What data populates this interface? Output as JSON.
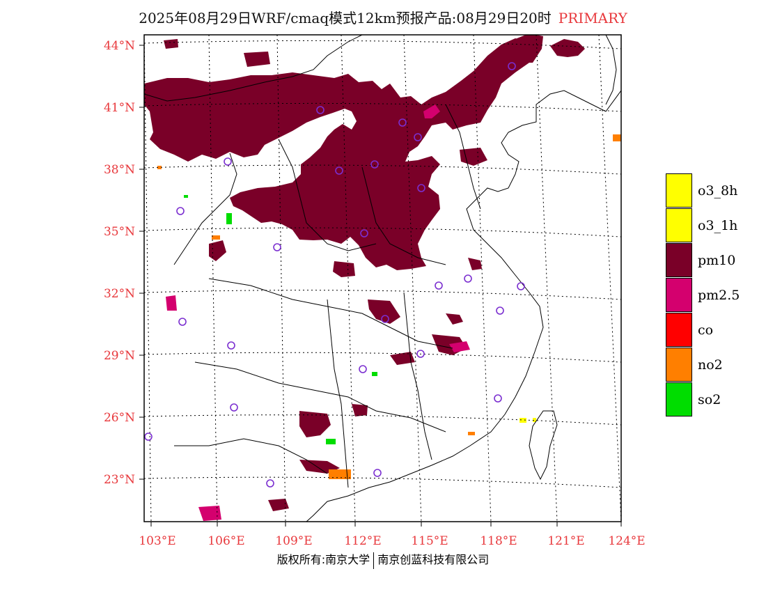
{
  "title": {
    "main": "2025年08月29日WRF/cmaq模式12km预报产品:08月29日20时",
    "tag": "PRIMARY"
  },
  "axes": {
    "lat_labels": [
      "44°N",
      "41°N",
      "38°N",
      "35°N",
      "32°N",
      "29°N",
      "26°N",
      "23°N"
    ],
    "lon_labels": [
      "103°E",
      "106°E",
      "109°E",
      "112°E",
      "115°E",
      "118°E",
      "121°E",
      "124°E"
    ]
  },
  "legend": [
    {
      "label": "o3_8h",
      "color": "#ffff00"
    },
    {
      "label": "o3_1h",
      "color": "#ffff00"
    },
    {
      "label": "pm10",
      "color": "#7a0028"
    },
    {
      "label": "pm2.5",
      "color": "#d4006e"
    },
    {
      "label": "co",
      "color": "#ff0000"
    },
    {
      "label": "no2",
      "color": "#ff7f00"
    },
    {
      "label": "so2",
      "color": "#00dd00"
    }
  ],
  "colors": {
    "pm10": "#7a0028",
    "pm25": "#d4006e",
    "no2": "#ff7f00",
    "so2": "#00dd00",
    "o3": "#ffff00",
    "station": "#7b2fd0",
    "label": "#e8383c"
  },
  "copyright": {
    "part1": "版权所有:南京大学",
    "part2": "南京创蓝科技有限公司"
  }
}
